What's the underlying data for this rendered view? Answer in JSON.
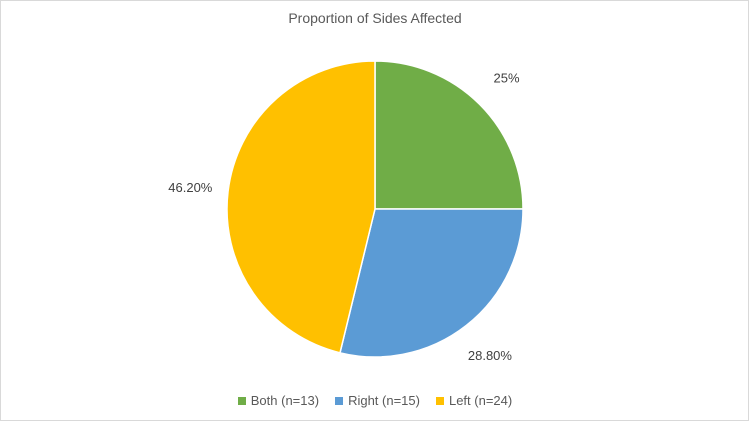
{
  "chart_data": {
    "type": "pie",
    "title": "Proportion of Sides Affected",
    "slices": [
      {
        "label": "Both (n=13)",
        "value": 25,
        "value_label": "25%",
        "color": "#70AD47"
      },
      {
        "label": "Right (n=15)",
        "value": 28.8,
        "value_label": "28.80%",
        "color": "#5B9BD5"
      },
      {
        "label": "Left (n=24)",
        "value": 46.2,
        "value_label": "46.20%",
        "color": "#FFC000"
      }
    ],
    "start_angle_deg": 0,
    "direction": "clockwise",
    "legend_position": "bottom"
  }
}
